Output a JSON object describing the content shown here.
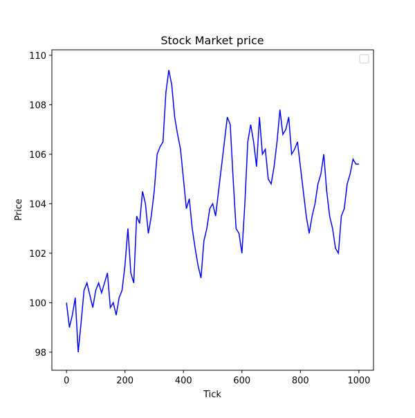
{
  "chart_data": {
    "type": "line",
    "title": "Stock Market price",
    "xlabel": "Tick",
    "ylabel": "Price",
    "x": [
      0,
      10,
      20,
      30,
      40,
      50,
      60,
      70,
      80,
      90,
      100,
      110,
      120,
      130,
      140,
      150,
      160,
      170,
      180,
      190,
      200,
      210,
      220,
      230,
      240,
      250,
      260,
      270,
      280,
      290,
      300,
      310,
      320,
      330,
      340,
      350,
      360,
      370,
      380,
      390,
      400,
      410,
      420,
      430,
      440,
      450,
      460,
      470,
      480,
      490,
      500,
      510,
      520,
      530,
      540,
      550,
      560,
      570,
      580,
      590,
      600,
      610,
      620,
      630,
      640,
      650,
      660,
      670,
      680,
      690,
      700,
      710,
      720,
      730,
      740,
      750,
      760,
      770,
      780,
      790,
      800,
      810,
      820,
      830,
      840,
      850,
      860,
      870,
      880,
      890,
      900,
      910,
      920,
      930,
      940,
      950,
      960,
      970,
      980,
      990,
      1000
    ],
    "series": [
      {
        "color": "#0000ff",
        "values": [
          100.0,
          99.0,
          99.5,
          100.2,
          98.0,
          99.2,
          100.5,
          100.8,
          100.3,
          99.8,
          100.5,
          100.8,
          100.4,
          100.8,
          101.2,
          99.8,
          100.0,
          99.5,
          100.2,
          100.5,
          101.5,
          103.0,
          101.2,
          100.8,
          103.5,
          103.2,
          104.5,
          104.0,
          102.8,
          103.5,
          104.5,
          106.0,
          106.3,
          106.5,
          108.5,
          109.4,
          108.8,
          107.5,
          106.8,
          106.2,
          105.0,
          103.8,
          104.2,
          103.0,
          102.2,
          101.5,
          101.0,
          102.5,
          103.0,
          103.8,
          104.0,
          103.5,
          104.5,
          105.5,
          106.5,
          107.5,
          107.2,
          105.0,
          103.0,
          102.8,
          102.0,
          104.0,
          106.5,
          107.2,
          106.5,
          105.5,
          107.5,
          106.0,
          106.2,
          105.0,
          104.8,
          105.5,
          106.5,
          107.8,
          106.8,
          107.0,
          107.5,
          106.0,
          106.2,
          106.5,
          105.5,
          104.5,
          103.5,
          102.8,
          103.5,
          104.0,
          104.8,
          105.2,
          106.0,
          104.5,
          103.5,
          103.0,
          102.2,
          102.0,
          103.5,
          103.8,
          104.8,
          105.2,
          105.8,
          105.6,
          105.6
        ]
      }
    ],
    "xlim": [
      -50,
      1050
    ],
    "ylim": [
      97.27,
      110.22
    ],
    "xticks": [
      0,
      200,
      400,
      600,
      800,
      1000
    ],
    "yticks": [
      98,
      100,
      102,
      104,
      106,
      108,
      110
    ],
    "legend": "upper right"
  }
}
